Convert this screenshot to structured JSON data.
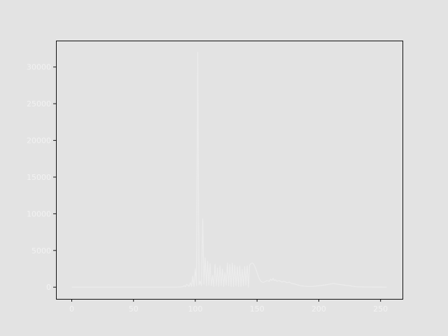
{
  "chart_data": {
    "type": "line",
    "title": "",
    "xlabel": "",
    "ylabel": "",
    "xlim": [
      -12.75,
      267.75
    ],
    "ylim": [
      -1600,
      33600
    ],
    "grid": false,
    "legend": "none",
    "x_ticks": [
      0,
      50,
      100,
      150,
      200,
      250
    ],
    "x_tick_labels": [
      "0",
      "50",
      "100",
      "150",
      "200",
      "250"
    ],
    "y_ticks": [
      0,
      5000,
      10000,
      15000,
      20000,
      25000,
      30000
    ],
    "y_tick_labels": [
      "0",
      "5000",
      "10000",
      "15000",
      "20000",
      "25000",
      "30000"
    ],
    "colors": {
      "background": "#e3e3e3",
      "frame": "#111111",
      "line": "#ececec",
      "text": "#f2f2f2"
    },
    "series": [
      {
        "x": [
          0,
          85,
          90,
          91,
          92,
          93,
          95,
          96,
          97,
          98,
          99,
          100,
          101,
          102,
          103,
          104,
          105,
          106,
          107,
          108,
          109,
          110,
          111,
          112,
          113,
          114,
          115,
          116,
          117,
          118,
          119,
          120,
          121,
          122,
          123,
          124,
          125,
          126,
          127,
          128,
          129,
          130,
          131,
          132,
          133,
          134,
          135,
          136,
          137,
          138,
          139,
          140,
          141,
          142,
          143,
          144,
          145,
          146,
          147,
          148,
          149,
          150,
          151,
          152,
          153,
          154,
          155,
          156,
          158,
          160,
          161,
          162,
          163,
          164,
          165,
          166,
          168,
          170,
          172,
          174,
          176,
          178,
          180,
          185,
          190,
          195,
          200,
          205,
          210,
          212,
          215,
          218,
          220,
          222,
          225,
          228,
          230,
          235,
          240,
          245,
          250,
          255
        ],
        "y": [
          0,
          0,
          50,
          200,
          50,
          400,
          100,
          600,
          100,
          1500,
          100,
          2500,
          200,
          32000,
          300,
          800,
          200,
          9300,
          400,
          4000,
          200,
          3500,
          300,
          3200,
          200,
          1600,
          100,
          3100,
          200,
          2600,
          100,
          2900,
          200,
          2500,
          100,
          2000,
          300,
          3300,
          200,
          3100,
          100,
          3300,
          100,
          3000,
          200,
          2800,
          100,
          2900,
          100,
          2400,
          200,
          2800,
          300,
          2900,
          0,
          3000,
          3200,
          3300,
          3200,
          2900,
          2500,
          2000,
          1500,
          1100,
          800,
          700,
          650,
          700,
          900,
          800,
          1100,
          900,
          1200,
          900,
          1000,
          800,
          900,
          700,
          800,
          600,
          700,
          500,
          450,
          200,
          100,
          100,
          200,
          300,
          450,
          500,
          400,
          350,
          300,
          250,
          200,
          100,
          50,
          30,
          20,
          10,
          10,
          0
        ]
      }
    ]
  }
}
